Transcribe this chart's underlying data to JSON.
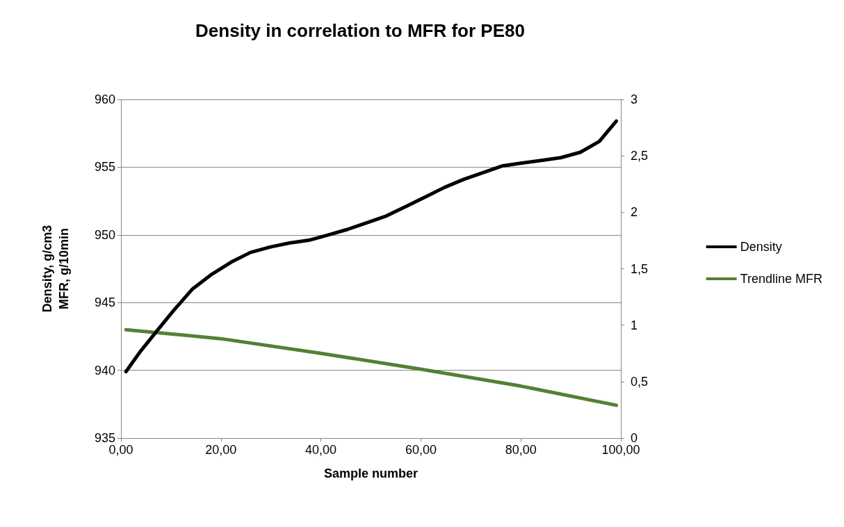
{
  "chart_data": {
    "type": "line",
    "title": "Density in correlation to MFR for PE80",
    "xlabel": "Sample number",
    "ylabel": "Density, g/cm3\nMFR, g/10min",
    "xlim": [
      0,
      100
    ],
    "xticks": [
      {
        "value": 0,
        "label": "0,00"
      },
      {
        "value": 20,
        "label": "20,00"
      },
      {
        "value": 40,
        "label": "40,00"
      },
      {
        "value": 60,
        "label": "60,00"
      },
      {
        "value": 80,
        "label": "80,00"
      },
      {
        "value": 100,
        "label": "100,00"
      }
    ],
    "ylim": [
      935,
      960
    ],
    "yticks": [
      935,
      940,
      945,
      950,
      955,
      960
    ],
    "y2lim": [
      0,
      3
    ],
    "y2ticks": [
      0,
      {
        "value": 0.5,
        "label": "0,5"
      },
      1,
      {
        "value": 1.5,
        "label": "1,5"
      },
      2,
      {
        "value": 2.5,
        "label": "2,5"
      },
      3
    ],
    "grid": "y",
    "legend": "right",
    "marker": "none",
    "line_style": "solid",
    "series": [
      {
        "name": "Density",
        "color": "#000000",
        "x": [
          1,
          3.9,
          7.4,
          10.5,
          14.3,
          18.2,
          22.1,
          25.9,
          29.8,
          33.7,
          37.6,
          41.5,
          45.3,
          49.2,
          53.1,
          57,
          60.9,
          64.7,
          68.6,
          72.5,
          76.4,
          80.2,
          84.1,
          88,
          91.9,
          95.7,
          99.1
        ],
        "values": [
          939.9,
          941.4,
          943.0,
          944.4,
          946.0,
          947.1,
          948.0,
          948.7,
          949.1,
          949.4,
          949.6,
          950.0,
          950.4,
          950.9,
          951.4,
          952.1,
          952.8,
          953.5,
          954.1,
          954.6,
          955.1,
          955.3,
          955.5,
          955.7,
          956.1,
          956.9,
          958.4
        ]
      },
      {
        "name": "Trendline MFR",
        "color": "#538135",
        "axis": "y2",
        "x": [
          1,
          20,
          40,
          60,
          80,
          99.1
        ],
        "values": [
          0.96,
          0.88,
          0.75,
          0.61,
          0.46,
          0.29
        ]
      }
    ]
  }
}
